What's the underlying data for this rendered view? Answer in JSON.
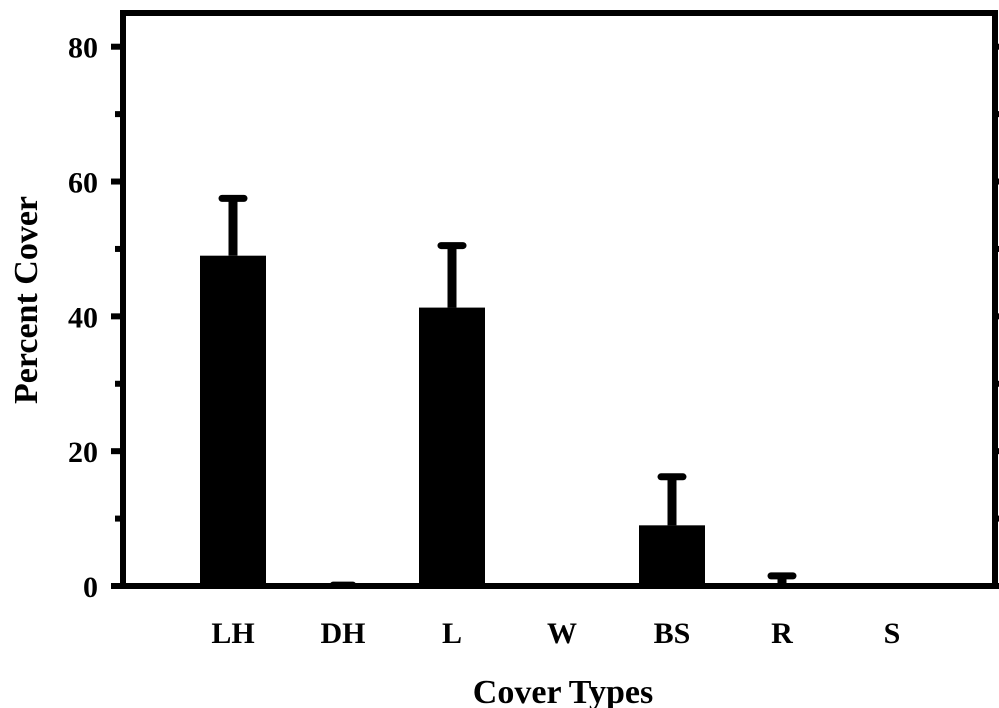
{
  "chart_data": {
    "type": "bar",
    "xlabel": "Cover Types",
    "ylabel": "Percent Cover",
    "categories": [
      "LH",
      "DH",
      "L",
      "W",
      "BS",
      "R",
      "S"
    ],
    "values": [
      49,
      0.2,
      41.3,
      0,
      9,
      0.3,
      0
    ],
    "error_upper": [
      57.5,
      0.2,
      50.5,
      0,
      16.2,
      1.5,
      0
    ],
    "ylim": [
      0,
      85
    ],
    "yticks": [
      0,
      20,
      40,
      60,
      80
    ],
    "minor_ticks": [
      10,
      30,
      50,
      70
    ],
    "grid": false,
    "bar_color": "#000000"
  }
}
